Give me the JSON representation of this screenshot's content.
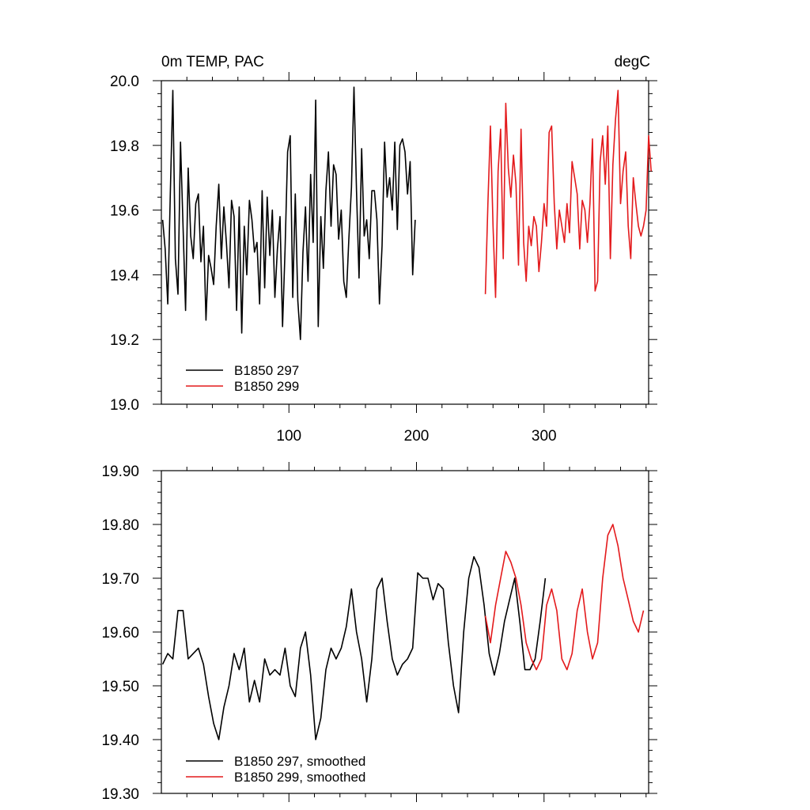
{
  "figure": {
    "title_left": "0m TEMP, PAC",
    "title_right": "degC"
  },
  "chart_data": [
    {
      "type": "line",
      "title": "0m TEMP, PAC",
      "units": "degC",
      "xlim": [
        0,
        382
      ],
      "ylim": [
        19.0,
        20.0
      ],
      "x_ticks": [
        100,
        200,
        300
      ],
      "x_tick_labels": [
        "100",
        "200",
        "300"
      ],
      "y_ticks": [
        19.0,
        19.2,
        19.4,
        19.6,
        19.8,
        20.0
      ],
      "y_tick_labels": [
        "19.0",
        "19.2",
        "19.4",
        "19.6",
        "19.8",
        "20.0"
      ],
      "grid": false,
      "legend_position": "bottom-left",
      "series": [
        {
          "name": "B1850 297",
          "color": "#000000",
          "x_start": 1,
          "x_step": 2,
          "values": [
            19.57,
            19.48,
            19.31,
            19.65,
            19.97,
            19.45,
            19.34,
            19.81,
            19.55,
            19.29,
            19.73,
            19.52,
            19.45,
            19.62,
            19.65,
            19.44,
            19.55,
            19.26,
            19.46,
            19.42,
            19.37,
            19.55,
            19.68,
            19.45,
            19.61,
            19.5,
            19.36,
            19.63,
            19.58,
            19.29,
            19.61,
            19.22,
            19.55,
            19.4,
            19.63,
            19.57,
            19.47,
            19.5,
            19.31,
            19.66,
            19.36,
            19.64,
            19.46,
            19.6,
            19.33,
            19.48,
            19.58,
            19.24,
            19.48,
            19.78,
            19.83,
            19.33,
            19.65,
            19.32,
            19.2,
            19.47,
            19.61,
            19.38,
            19.71,
            19.5,
            19.94,
            19.24,
            19.58,
            19.42,
            19.66,
            19.78,
            19.55,
            19.74,
            19.71,
            19.51,
            19.6,
            19.38,
            19.33,
            19.51,
            19.67,
            19.98,
            19.66,
            19.39,
            19.79,
            19.52,
            19.57,
            19.45,
            19.66,
            19.66,
            19.57,
            19.31,
            19.49,
            19.81,
            19.64,
            19.7,
            19.6,
            19.81,
            19.54,
            19.8,
            19.82,
            19.78,
            19.65,
            19.75,
            19.4,
            19.57
          ]
        },
        {
          "name": "B1850 299",
          "color": "#e31a1c",
          "x_start": 254,
          "x_step": 2,
          "values": [
            19.34,
            19.62,
            19.86,
            19.55,
            19.33,
            19.72,
            19.85,
            19.45,
            19.93,
            19.73,
            19.64,
            19.77,
            19.68,
            19.43,
            19.85,
            19.5,
            19.38,
            19.55,
            19.49,
            19.58,
            19.55,
            19.41,
            19.5,
            19.62,
            19.55,
            19.84,
            19.86,
            19.62,
            19.48,
            19.6,
            19.55,
            19.5,
            19.62,
            19.53,
            19.75,
            19.7,
            19.65,
            19.48,
            19.63,
            19.6,
            19.5,
            19.62,
            19.82,
            19.35,
            19.38,
            19.75,
            19.83,
            19.68,
            19.86,
            19.45,
            19.74,
            19.88,
            19.97,
            19.62,
            19.72,
            19.78,
            19.55,
            19.45,
            19.7,
            19.62,
            19.55,
            19.52,
            19.55,
            19.6,
            19.83,
            19.72
          ]
        }
      ]
    },
    {
      "type": "line",
      "xlim": [
        0,
        382
      ],
      "ylim": [
        19.3,
        19.9
      ],
      "y_ticks": [
        19.3,
        19.4,
        19.5,
        19.6,
        19.7,
        19.8,
        19.9
      ],
      "y_tick_labels": [
        "19.30",
        "19.40",
        "19.50",
        "19.60",
        "19.70",
        "19.80",
        "19.90"
      ],
      "grid": false,
      "legend_position": "bottom-left",
      "series": [
        {
          "name": "B1850 297, smoothed",
          "color": "#000000",
          "x_start": 1,
          "x_step": 4,
          "values": [
            19.54,
            19.56,
            19.55,
            19.64,
            19.64,
            19.55,
            19.56,
            19.57,
            19.54,
            19.48,
            19.43,
            19.4,
            19.46,
            19.5,
            19.56,
            19.53,
            19.57,
            19.47,
            19.51,
            19.47,
            19.55,
            19.52,
            19.53,
            19.52,
            19.57,
            19.5,
            19.48,
            19.57,
            19.6,
            19.52,
            19.4,
            19.44,
            19.53,
            19.57,
            19.55,
            19.57,
            19.61,
            19.68,
            19.6,
            19.55,
            19.47,
            19.55,
            19.68,
            19.7,
            19.62,
            19.55,
            19.52,
            19.54,
            19.55,
            19.57,
            19.71,
            19.7,
            19.7,
            19.66,
            19.69,
            19.68,
            19.58,
            19.5,
            19.45,
            19.6,
            19.7,
            19.74,
            19.72,
            19.65,
            19.56,
            19.52,
            19.56,
            19.62,
            19.66,
            19.7,
            19.62,
            19.53,
            19.53,
            19.55,
            19.62,
            19.7
          ]
        },
        {
          "name": "B1850 299, smoothed",
          "color": "#e31a1c",
          "x_start": 254,
          "x_step": 4,
          "values": [
            19.63,
            19.58,
            19.65,
            19.7,
            19.75,
            19.73,
            19.7,
            19.65,
            19.58,
            19.55,
            19.53,
            19.55,
            19.65,
            19.68,
            19.64,
            19.55,
            19.53,
            19.56,
            19.64,
            19.68,
            19.6,
            19.55,
            19.58,
            19.7,
            19.78,
            19.8,
            19.76,
            19.7,
            19.66,
            19.62,
            19.6,
            19.64
          ]
        }
      ]
    }
  ]
}
